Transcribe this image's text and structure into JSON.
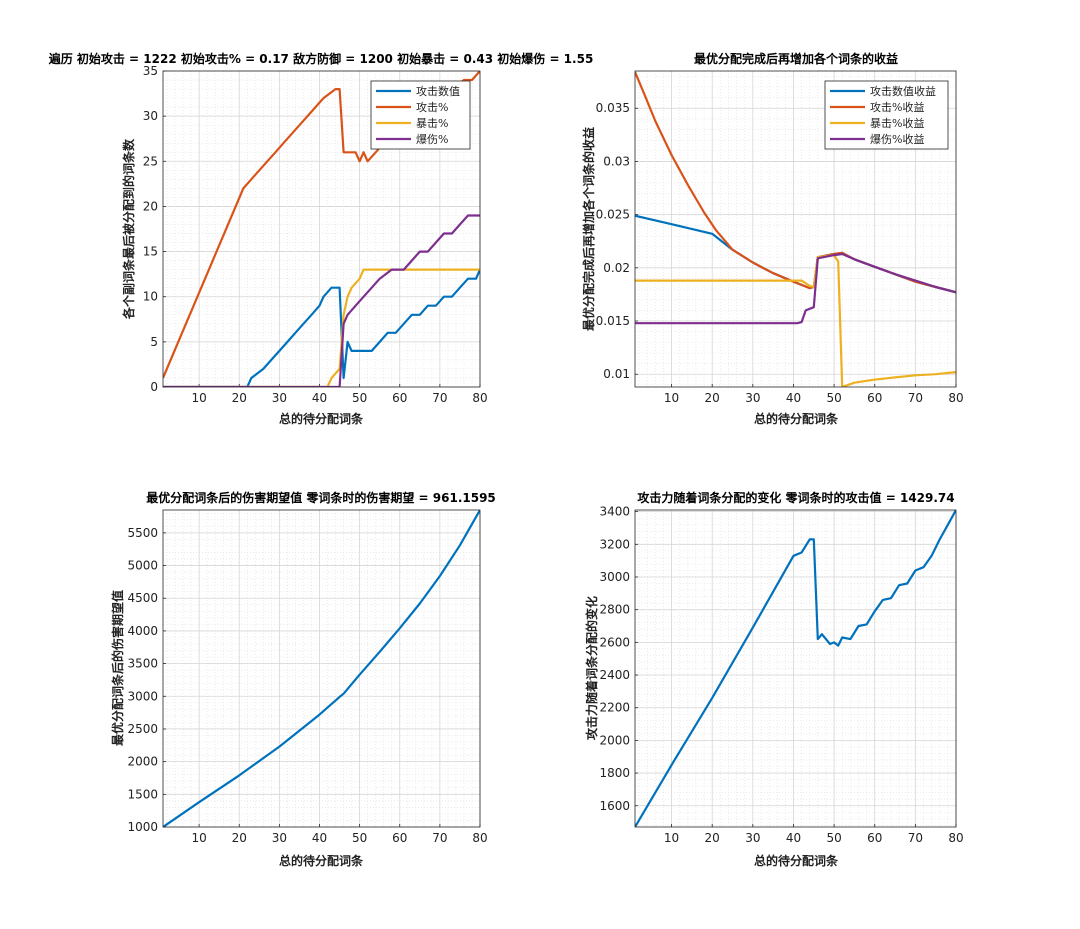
{
  "chart_data": [
    {
      "type": "line",
      "title": "遍历 初始攻击 = 1222 初始攻击% = 0.17 敌方防御 = 1200 初始暴击 = 0.43 初始爆伤 = 1.55",
      "xlabel": "总的待分配词条",
      "ylabel": "各个副词条最后被分配到的词条数",
      "xlim": [
        1,
        80
      ],
      "ylim": [
        0,
        35
      ],
      "xticks": [
        10,
        20,
        30,
        40,
        50,
        60,
        70,
        80
      ],
      "yticks": [
        0,
        5,
        10,
        15,
        20,
        25,
        30,
        35
      ],
      "grid": true,
      "legend_position": "top-right",
      "series": [
        {
          "name": "攻击数值",
          "color": "#0072BD",
          "points": [
            [
              1,
              0
            ],
            [
              22,
              0
            ],
            [
              23,
              1
            ],
            [
              26,
              2
            ],
            [
              28,
              3
            ],
            [
              30,
              4
            ],
            [
              32,
              5
            ],
            [
              34,
              6
            ],
            [
              36,
              7
            ],
            [
              38,
              8
            ],
            [
              40,
              9
            ],
            [
              41,
              10
            ],
            [
              43,
              11
            ],
            [
              45,
              11
            ],
            [
              46,
              1
            ],
            [
              47,
              5
            ],
            [
              48,
              4
            ],
            [
              50,
              4
            ],
            [
              53,
              4
            ],
            [
              55,
              5
            ],
            [
              57,
              6
            ],
            [
              59,
              6
            ],
            [
              61,
              7
            ],
            [
              63,
              8
            ],
            [
              65,
              8
            ],
            [
              67,
              9
            ],
            [
              69,
              9
            ],
            [
              71,
              10
            ],
            [
              73,
              10
            ],
            [
              75,
              11
            ],
            [
              77,
              12
            ],
            [
              79,
              12
            ],
            [
              80,
              13
            ]
          ]
        },
        {
          "name": "攻击%",
          "color": "#D95319",
          "points": [
            [
              1,
              1
            ],
            [
              21,
              22
            ],
            [
              23,
              23
            ],
            [
              25,
              24
            ],
            [
              27,
              25
            ],
            [
              29,
              26
            ],
            [
              31,
              27
            ],
            [
              33,
              28
            ],
            [
              35,
              29
            ],
            [
              37,
              30
            ],
            [
              39,
              31
            ],
            [
              41,
              32
            ],
            [
              44,
              33
            ],
            [
              45,
              33
            ],
            [
              46,
              26
            ],
            [
              48,
              26
            ],
            [
              49,
              26
            ],
            [
              50,
              25
            ],
            [
              51,
              26
            ],
            [
              52,
              25
            ],
            [
              54,
              26
            ],
            [
              56,
              27
            ],
            [
              58,
              28
            ],
            [
              61,
              29
            ],
            [
              64,
              30
            ],
            [
              67,
              31
            ],
            [
              70,
              32
            ],
            [
              73,
              33
            ],
            [
              76,
              34
            ],
            [
              78,
              34
            ],
            [
              80,
              35
            ]
          ]
        },
        {
          "name": "暴击%",
          "color": "#EDB120",
          "points": [
            [
              1,
              0
            ],
            [
              42,
              0
            ],
            [
              43,
              1
            ],
            [
              45,
              2
            ],
            [
              46,
              8
            ],
            [
              47,
              10
            ],
            [
              48,
              11
            ],
            [
              50,
              12
            ],
            [
              51,
              13
            ],
            [
              80,
              13
            ]
          ]
        },
        {
          "name": "爆伤%",
          "color": "#7E2F8E",
          "points": [
            [
              1,
              0
            ],
            [
              45,
              0
            ],
            [
              46,
              7
            ],
            [
              47,
              8
            ],
            [
              49,
              9
            ],
            [
              51,
              10
            ],
            [
              53,
              11
            ],
            [
              55,
              12
            ],
            [
              58,
              13
            ],
            [
              61,
              13
            ],
            [
              63,
              14
            ],
            [
              65,
              15
            ],
            [
              67,
              15
            ],
            [
              69,
              16
            ],
            [
              71,
              17
            ],
            [
              73,
              17
            ],
            [
              75,
              18
            ],
            [
              77,
              19
            ],
            [
              80,
              19
            ]
          ]
        }
      ]
    },
    {
      "type": "line",
      "title": "最优分配完成后再增加各个词条的收益",
      "xlabel": "总的待分配词条",
      "ylabel": "最优分配完成后再增加各个词条的收益",
      "xlim": [
        1,
        80
      ],
      "ylim": [
        0.0088,
        0.0385
      ],
      "xticks": [
        10,
        20,
        30,
        40,
        50,
        60,
        70,
        80
      ],
      "yticks": [
        0.01,
        0.015,
        0.02,
        0.025,
        0.03,
        0.035
      ],
      "ytick_labels": [
        "0.01",
        "0.015",
        "0.02",
        "0.025",
        "0.03",
        "0.035"
      ],
      "grid": true,
      "legend_position": "top-right",
      "series": [
        {
          "name": "攻击数值收益",
          "color": "#0072BD",
          "points": [
            [
              1,
              0.0249
            ],
            [
              10,
              0.0241
            ],
            [
              20,
              0.0232
            ],
            [
              25,
              0.0217
            ],
            [
              30,
              0.0205
            ],
            [
              35,
              0.0195
            ],
            [
              40,
              0.0187
            ],
            [
              44,
              0.0181
            ],
            [
              45,
              0.0182
            ],
            [
              46,
              0.021
            ],
            [
              50,
              0.0213
            ],
            [
              52,
              0.0214
            ],
            [
              55,
              0.0208
            ],
            [
              60,
              0.0201
            ],
            [
              65,
              0.0194
            ],
            [
              70,
              0.0187
            ],
            [
              75,
              0.0182
            ],
            [
              80,
              0.0177
            ]
          ]
        },
        {
          "name": "攻击%收益",
          "color": "#D95319",
          "points": [
            [
              1,
              0.0384
            ],
            [
              3,
              0.0366
            ],
            [
              6,
              0.0338
            ],
            [
              10,
              0.0306
            ],
            [
              14,
              0.0278
            ],
            [
              18,
              0.0252
            ],
            [
              21,
              0.0235
            ],
            [
              25,
              0.0217
            ],
            [
              30,
              0.0205
            ],
            [
              35,
              0.0195
            ],
            [
              40,
              0.0187
            ],
            [
              44,
              0.0181
            ],
            [
              45,
              0.0182
            ],
            [
              46,
              0.021
            ],
            [
              50,
              0.0213
            ],
            [
              52,
              0.0214
            ],
            [
              55,
              0.0208
            ],
            [
              60,
              0.0201
            ],
            [
              65,
              0.0194
            ],
            [
              70,
              0.0187
            ],
            [
              75,
              0.0182
            ],
            [
              80,
              0.0177
            ]
          ]
        },
        {
          "name": "暴击%收益",
          "color": "#EDB120",
          "points": [
            [
              1,
              0.0188
            ],
            [
              42,
              0.0188
            ],
            [
              44,
              0.0183
            ],
            [
              45,
              0.0182
            ],
            [
              46,
              0.021
            ],
            [
              50,
              0.0212
            ],
            [
              51,
              0.0206
            ],
            [
              52,
              0.0088
            ],
            [
              55,
              0.0092
            ],
            [
              60,
              0.0095
            ],
            [
              65,
              0.0097
            ],
            [
              70,
              0.0099
            ],
            [
              75,
              0.01
            ],
            [
              80,
              0.0102
            ]
          ]
        },
        {
          "name": "爆伤%收益",
          "color": "#7E2F8E",
          "points": [
            [
              1,
              0.0148
            ],
            [
              41,
              0.0148
            ],
            [
              42,
              0.0149
            ],
            [
              43,
              0.016
            ],
            [
              45,
              0.0163
            ],
            [
              46,
              0.0209
            ],
            [
              50,
              0.0212
            ],
            [
              52,
              0.0213
            ],
            [
              55,
              0.0208
            ],
            [
              60,
              0.0201
            ],
            [
              65,
              0.0194
            ],
            [
              70,
              0.0188
            ],
            [
              75,
              0.0182
            ],
            [
              80,
              0.0177
            ]
          ]
        }
      ]
    },
    {
      "type": "line",
      "title": "最优分配词条后的伤害期望值 零词条时的伤害期望 = 961.1595",
      "xlabel": "总的待分配词条",
      "ylabel": "最优分配词条后的伤害期望值",
      "xlim": [
        1,
        80
      ],
      "ylim": [
        1000,
        5850
      ],
      "xticks": [
        10,
        20,
        30,
        40,
        50,
        60,
        70,
        80
      ],
      "yticks": [
        1000,
        1500,
        2000,
        2500,
        3000,
        3500,
        4000,
        4500,
        5000,
        5500
      ],
      "grid": true,
      "series": [
        {
          "name": "",
          "color": "#0072BD",
          "points": [
            [
              1,
              1000
            ],
            [
              10,
              1380
            ],
            [
              20,
              1790
            ],
            [
              30,
              2230
            ],
            [
              40,
              2720
            ],
            [
              45,
              2990
            ],
            [
              46,
              3040
            ],
            [
              50,
              3330
            ],
            [
              55,
              3680
            ],
            [
              60,
              4040
            ],
            [
              65,
              4420
            ],
            [
              70,
              4840
            ],
            [
              75,
              5310
            ],
            [
              80,
              5850
            ]
          ]
        }
      ]
    },
    {
      "type": "line",
      "title": "攻击力随着词条分配的变化 零词条时的攻击值 = 1429.74",
      "xlabel": "总的待分配词条",
      "ylabel": "攻击力随着词条分配的变化",
      "xlim": [
        1,
        80
      ],
      "ylim": [
        1470,
        3410
      ],
      "xticks": [
        10,
        20,
        30,
        40,
        50,
        60,
        70,
        80
      ],
      "yticks": [
        1600,
        1800,
        2000,
        2200,
        2400,
        2600,
        2800,
        3000,
        3200,
        3400
      ],
      "grid": true,
      "series": [
        {
          "name": "",
          "color": "#0072BD",
          "points": [
            [
              1,
              1470
            ],
            [
              10,
              1850
            ],
            [
              20,
              2260
            ],
            [
              30,
              2690
            ],
            [
              40,
              3130
            ],
            [
              42,
              3150
            ],
            [
              44,
              3230
            ],
            [
              45,
              3230
            ],
            [
              46,
              2620
            ],
            [
              47,
              2650
            ],
            [
              49,
              2590
            ],
            [
              50,
              2600
            ],
            [
              51,
              2580
            ],
            [
              52,
              2630
            ],
            [
              54,
              2620
            ],
            [
              56,
              2700
            ],
            [
              58,
              2710
            ],
            [
              60,
              2790
            ],
            [
              62,
              2860
            ],
            [
              64,
              2870
            ],
            [
              66,
              2950
            ],
            [
              68,
              2960
            ],
            [
              70,
              3040
            ],
            [
              72,
              3060
            ],
            [
              74,
              3130
            ],
            [
              76,
              3230
            ],
            [
              78,
              3320
            ],
            [
              80,
              3410
            ]
          ]
        }
      ]
    }
  ]
}
